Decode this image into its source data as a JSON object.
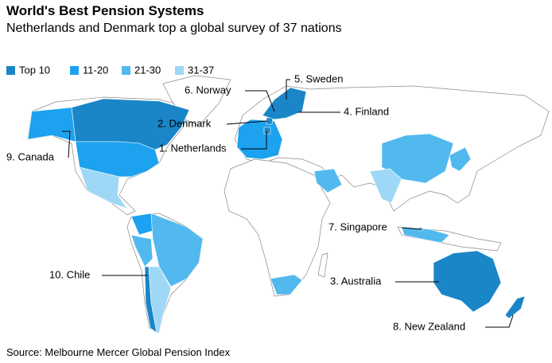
{
  "header": {
    "title": "World's Best Pension Systems",
    "subtitle": "Netherlands and Denmark top a global survey of 37 nations"
  },
  "legend": [
    {
      "label": "Top 10",
      "color": "#1a86c8"
    },
    {
      "label": "11-20",
      "color": "#1da2ef"
    },
    {
      "label": "21-30",
      "color": "#52b9ef"
    },
    {
      "label": "31-37",
      "color": "#9fd8f6"
    }
  ],
  "labels": [
    "5. Sweden",
    "6. Norway",
    "4. Finland",
    "2. Denmark",
    "1. Netherlands",
    "9. Canada",
    "7. Singapore",
    "10. Chile",
    "3. Australia",
    "8. New Zealand"
  ],
  "source": "Source: Melbourne Mercer Global Pension Index"
}
